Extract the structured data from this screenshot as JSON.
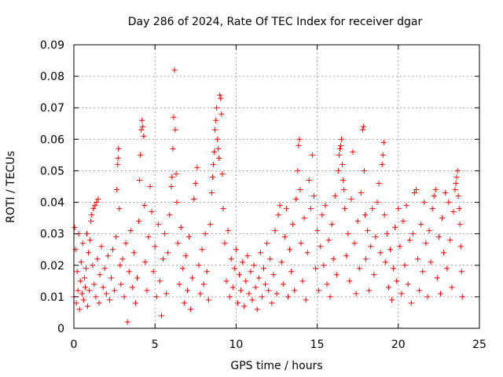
{
  "chart_data": {
    "type": "scatter",
    "title": "Day 286 of 2024, Rate Of TEC Index for receiver dgar",
    "xlabel": "GPS time / hours",
    "ylabel": "ROTI / TECUs",
    "xlim": [
      0,
      25
    ],
    "ylim": [
      0,
      0.09
    ],
    "xticks": [
      0,
      5,
      10,
      15,
      20,
      25
    ],
    "xtick_labels": [
      "0",
      "5",
      "10",
      "15",
      "20",
      "25"
    ],
    "yticks": [
      0,
      0.01,
      0.02,
      0.03,
      0.04,
      0.05,
      0.06,
      0.07,
      0.08,
      0.09
    ],
    "ytick_labels": [
      "0",
      "0.01",
      "0.02",
      "0.03",
      "0.04",
      "0.05",
      "0.06",
      "0.07",
      "0.08",
      "0.09"
    ],
    "grid": true,
    "marker": "+",
    "color": "#ff0000",
    "series": [
      {
        "name": "ROTI",
        "points": [
          [
            0.0,
            0.01
          ],
          [
            0.05,
            0.032
          ],
          [
            0.1,
            0.025
          ],
          [
            0.15,
            0.008
          ],
          [
            0.2,
            0.018
          ],
          [
            0.25,
            0.012
          ],
          [
            0.3,
            0.03
          ],
          [
            0.35,
            0.006
          ],
          [
            0.4,
            0.015
          ],
          [
            0.45,
            0.021
          ],
          [
            0.5,
            0.011
          ],
          [
            0.55,
            0.027
          ],
          [
            0.6,
            0.009
          ],
          [
            0.65,
            0.016
          ],
          [
            0.7,
            0.013
          ],
          [
            0.75,
            0.019
          ],
          [
            0.8,
            0.03
          ],
          [
            0.85,
            0.007
          ],
          [
            0.9,
            0.024
          ],
          [
            0.95,
            0.012
          ],
          [
            1.0,
            0.028
          ],
          [
            1.05,
            0.034
          ],
          [
            1.1,
            0.036
          ],
          [
            1.15,
            0.02
          ],
          [
            1.2,
            0.038
          ],
          [
            1.25,
            0.014
          ],
          [
            1.3,
            0.039
          ],
          [
            1.35,
            0.01
          ],
          [
            1.4,
            0.04
          ],
          [
            1.45,
            0.022
          ],
          [
            1.5,
            0.041
          ],
          [
            1.55,
            0.008
          ],
          [
            1.6,
            0.017
          ],
          [
            1.7,
            0.026
          ],
          [
            1.8,
            0.013
          ],
          [
            1.9,
            0.019
          ],
          [
            2.0,
            0.011
          ],
          [
            2.1,
            0.023
          ],
          [
            2.2,
            0.009
          ],
          [
            2.3,
            0.016
          ],
          [
            2.4,
            0.025
          ],
          [
            2.5,
            0.012
          ],
          [
            2.6,
            0.029
          ],
          [
            2.65,
            0.044
          ],
          [
            2.7,
            0.052
          ],
          [
            2.72,
            0.054
          ],
          [
            2.75,
            0.057
          ],
          [
            2.8,
            0.038
          ],
          [
            2.85,
            0.02
          ],
          [
            2.9,
            0.014
          ],
          [
            3.0,
            0.022
          ],
          [
            3.1,
            0.01
          ],
          [
            3.2,
            0.027
          ],
          [
            3.3,
            0.002
          ],
          [
            3.4,
            0.018
          ],
          [
            3.5,
            0.031
          ],
          [
            3.6,
            0.013
          ],
          [
            3.7,
            0.024
          ],
          [
            3.8,
            0.008
          ],
          [
            3.9,
            0.016
          ],
          [
            4.0,
            0.034
          ],
          [
            4.05,
            0.047
          ],
          [
            4.1,
            0.055
          ],
          [
            4.15,
            0.063
          ],
          [
            4.2,
            0.066
          ],
          [
            4.25,
            0.064
          ],
          [
            4.3,
            0.061
          ],
          [
            4.35,
            0.039
          ],
          [
            4.4,
            0.021
          ],
          [
            4.5,
            0.012
          ],
          [
            4.6,
            0.029
          ],
          [
            4.7,
            0.045
          ],
          [
            4.8,
            0.037
          ],
          [
            4.9,
            0.018
          ],
          [
            5.0,
            0.026
          ],
          [
            5.1,
            0.01
          ],
          [
            5.2,
            0.033
          ],
          [
            5.3,
            0.015
          ],
          [
            5.4,
            0.004
          ],
          [
            5.5,
            0.022
          ],
          [
            5.6,
            0.03
          ],
          [
            5.7,
            0.011
          ],
          [
            5.8,
            0.024
          ],
          [
            5.9,
            0.036
          ],
          [
            6.0,
            0.045
          ],
          [
            6.05,
            0.048
          ],
          [
            6.1,
            0.057
          ],
          [
            6.15,
            0.067
          ],
          [
            6.2,
            0.082
          ],
          [
            6.25,
            0.063
          ],
          [
            6.3,
            0.049
          ],
          [
            6.35,
            0.04
          ],
          [
            6.4,
            0.027
          ],
          [
            6.5,
            0.014
          ],
          [
            6.6,
            0.032
          ],
          [
            6.7,
            0.019
          ],
          [
            6.8,
            0.008
          ],
          [
            6.9,
            0.023
          ],
          [
            7.0,
            0.012
          ],
          [
            7.1,
            0.029
          ],
          [
            7.2,
            0.006
          ],
          [
            7.3,
            0.016
          ],
          [
            7.4,
            0.041
          ],
          [
            7.5,
            0.046
          ],
          [
            7.6,
            0.051
          ],
          [
            7.7,
            0.02
          ],
          [
            7.8,
            0.011
          ],
          [
            7.9,
            0.025
          ],
          [
            8.0,
            0.014
          ],
          [
            8.1,
            0.03
          ],
          [
            8.2,
            0.018
          ],
          [
            8.3,
            0.009
          ],
          [
            8.4,
            0.033
          ],
          [
            8.5,
            0.043
          ],
          [
            8.55,
            0.048
          ],
          [
            8.6,
            0.052
          ],
          [
            8.65,
            0.056
          ],
          [
            8.7,
            0.063
          ],
          [
            8.75,
            0.066
          ],
          [
            8.8,
            0.07
          ],
          [
            8.85,
            0.06
          ],
          [
            8.9,
            0.057
          ],
          [
            8.95,
            0.054
          ],
          [
            9.0,
            0.074
          ],
          [
            9.05,
            0.073
          ],
          [
            9.1,
            0.068
          ],
          [
            9.15,
            0.049
          ],
          [
            9.2,
            0.038
          ],
          [
            9.3,
            0.027
          ],
          [
            9.4,
            0.015
          ],
          [
            9.5,
            0.031
          ],
          [
            9.6,
            0.01
          ],
          [
            9.7,
            0.022
          ],
          [
            9.8,
            0.013
          ],
          [
            9.9,
            0.019
          ],
          [
            10.0,
            0.025
          ],
          [
            10.1,
            0.008
          ],
          [
            10.2,
            0.017
          ],
          [
            10.3,
            0.012
          ],
          [
            10.4,
            0.021
          ],
          [
            10.5,
            0.007
          ],
          [
            10.6,
            0.015
          ],
          [
            10.7,
            0.023
          ],
          [
            10.8,
            0.011
          ],
          [
            10.9,
            0.018
          ],
          [
            11.0,
            0.009
          ],
          [
            11.1,
            0.02
          ],
          [
            11.2,
            0.013
          ],
          [
            11.3,
            0.006
          ],
          [
            11.4,
            0.016
          ],
          [
            11.5,
            0.024
          ],
          [
            11.6,
            0.01
          ],
          [
            11.7,
            0.019
          ],
          [
            11.8,
            0.014
          ],
          [
            11.9,
            0.027
          ],
          [
            12.0,
            0.012
          ],
          [
            12.1,
            0.022
          ],
          [
            12.2,
            0.008
          ],
          [
            12.3,
            0.017
          ],
          [
            12.4,
            0.031
          ],
          [
            12.5,
            0.011
          ],
          [
            12.6,
            0.036
          ],
          [
            12.7,
            0.039
          ],
          [
            12.8,
            0.021
          ],
          [
            12.9,
            0.014
          ],
          [
            13.0,
            0.029
          ],
          [
            13.1,
            0.038
          ],
          [
            13.2,
            0.01
          ],
          [
            13.3,
            0.025
          ],
          [
            13.4,
            0.018
          ],
          [
            13.5,
            0.033
          ],
          [
            13.6,
            0.012
          ],
          [
            13.7,
            0.041
          ],
          [
            13.8,
            0.05
          ],
          [
            13.85,
            0.058
          ],
          [
            13.9,
            0.06
          ],
          [
            13.95,
            0.044
          ],
          [
            14.0,
            0.027
          ],
          [
            14.1,
            0.015
          ],
          [
            14.2,
            0.035
          ],
          [
            14.3,
            0.009
          ],
          [
            14.4,
            0.024
          ],
          [
            14.5,
            0.047
          ],
          [
            14.6,
            0.038
          ],
          [
            14.7,
            0.055
          ],
          [
            14.8,
            0.042
          ],
          [
            14.9,
            0.019
          ],
          [
            15.0,
            0.031
          ],
          [
            15.1,
            0.012
          ],
          [
            15.2,
            0.026
          ],
          [
            15.3,
            0.036
          ],
          [
            15.4,
            0.02
          ],
          [
            15.5,
            0.039
          ],
          [
            15.6,
            0.014
          ],
          [
            15.7,
            0.028
          ],
          [
            15.8,
            0.01
          ],
          [
            15.9,
            0.033
          ],
          [
            16.0,
            0.022
          ],
          [
            16.1,
            0.042
          ],
          [
            16.2,
            0.017
          ],
          [
            16.3,
            0.05
          ],
          [
            16.35,
            0.055
          ],
          [
            16.4,
            0.057
          ],
          [
            16.45,
            0.058
          ],
          [
            16.5,
            0.06
          ],
          [
            16.55,
            0.052
          ],
          [
            16.6,
            0.047
          ],
          [
            16.65,
            0.044
          ],
          [
            16.7,
            0.038
          ],
          [
            16.8,
            0.023
          ],
          [
            16.9,
            0.03
          ],
          [
            17.0,
            0.015
          ],
          [
            17.1,
            0.041
          ],
          [
            17.2,
            0.056
          ],
          [
            17.3,
            0.027
          ],
          [
            17.4,
            0.011
          ],
          [
            17.5,
            0.034
          ],
          [
            17.6,
            0.019
          ],
          [
            17.7,
            0.043
          ],
          [
            17.8,
            0.063
          ],
          [
            17.85,
            0.064
          ],
          [
            17.9,
            0.05
          ],
          [
            17.95,
            0.036
          ],
          [
            18.0,
            0.022
          ],
          [
            18.1,
            0.031
          ],
          [
            18.2,
            0.012
          ],
          [
            18.3,
            0.026
          ],
          [
            18.4,
            0.038
          ],
          [
            18.5,
            0.017
          ],
          [
            18.6,
            0.029
          ],
          [
            18.7,
            0.04
          ],
          [
            18.8,
            0.046
          ],
          [
            18.9,
            0.024
          ],
          [
            19.0,
            0.052
          ],
          [
            19.05,
            0.055
          ],
          [
            19.1,
            0.059
          ],
          [
            19.15,
            0.036
          ],
          [
            19.2,
            0.021
          ],
          [
            19.3,
            0.03
          ],
          [
            19.4,
            0.013
          ],
          [
            19.5,
            0.025
          ],
          [
            19.6,
            0.009
          ],
          [
            19.7,
            0.019
          ],
          [
            19.8,
            0.032
          ],
          [
            19.9,
            0.015
          ],
          [
            20.0,
            0.038
          ],
          [
            20.1,
            0.026
          ],
          [
            20.2,
            0.011
          ],
          [
            20.3,
            0.034
          ],
          [
            20.4,
            0.02
          ],
          [
            20.5,
            0.039
          ],
          [
            20.6,
            0.014
          ],
          [
            20.7,
            0.028
          ],
          [
            20.8,
            0.008
          ],
          [
            20.9,
            0.03
          ],
          [
            21.0,
            0.043
          ],
          [
            21.1,
            0.044
          ],
          [
            21.2,
            0.022
          ],
          [
            21.3,
            0.012
          ],
          [
            21.4,
            0.033
          ],
          [
            21.5,
            0.018
          ],
          [
            21.6,
            0.04
          ],
          [
            21.7,
            0.027
          ],
          [
            21.8,
            0.01
          ],
          [
            21.9,
            0.031
          ],
          [
            22.0,
            0.021
          ],
          [
            22.1,
            0.038
          ],
          [
            22.2,
            0.042
          ],
          [
            22.3,
            0.044
          ],
          [
            22.4,
            0.016
          ],
          [
            22.5,
            0.029
          ],
          [
            22.6,
            0.011
          ],
          [
            22.7,
            0.035
          ],
          [
            22.8,
            0.024
          ],
          [
            22.9,
            0.043
          ],
          [
            23.0,
            0.019
          ],
          [
            23.1,
            0.04
          ],
          [
            23.2,
            0.028
          ],
          [
            23.3,
            0.013
          ],
          [
            23.4,
            0.037
          ],
          [
            23.5,
            0.044
          ],
          [
            23.55,
            0.046
          ],
          [
            23.6,
            0.048
          ],
          [
            23.65,
            0.05
          ],
          [
            23.7,
            0.042
          ],
          [
            23.75,
            0.038
          ],
          [
            23.8,
            0.033
          ],
          [
            23.85,
            0.026
          ],
          [
            23.9,
            0.018
          ],
          [
            23.95,
            0.01
          ]
        ]
      }
    ]
  }
}
